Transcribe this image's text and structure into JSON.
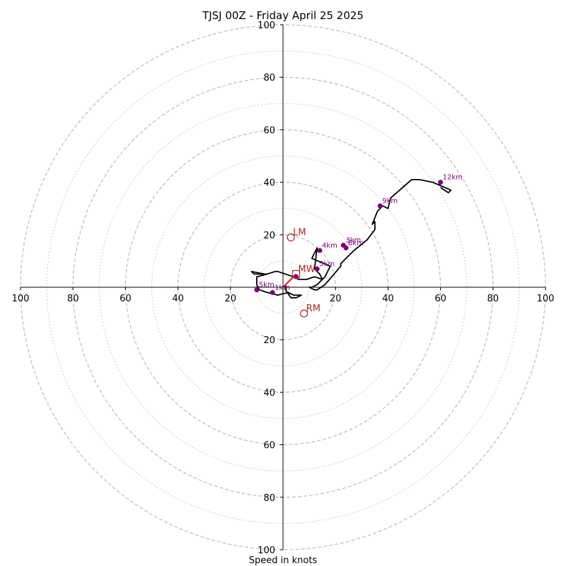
{
  "chart_data": {
    "type": "line",
    "title": "TJSJ 00Z - Friday April 25 2025",
    "xlabel": "Speed in knots",
    "xlim": [
      -100,
      100
    ],
    "ylim": [
      -100,
      100
    ],
    "ticks": [
      {
        "value": -100,
        "label": "100"
      },
      {
        "value": -80,
        "label": "80"
      },
      {
        "value": -60,
        "label": "60"
      },
      {
        "value": -40,
        "label": "40"
      },
      {
        "value": -20,
        "label": "20"
      },
      {
        "value": 20,
        "label": "20"
      },
      {
        "value": 40,
        "label": "40"
      },
      {
        "value": 60,
        "label": "60"
      },
      {
        "value": 80,
        "label": "80"
      },
      {
        "value": 100,
        "label": "100"
      }
    ],
    "ring_dashed": [
      20,
      40,
      60,
      80,
      100
    ],
    "ring_dotted": [
      10,
      30,
      50,
      70,
      90
    ],
    "trace_u": [
      1,
      1,
      3,
      5,
      7,
      4,
      2,
      -2,
      -6,
      -9,
      -10,
      -10,
      -6,
      -7,
      -12,
      -11,
      -6,
      -3,
      -2,
      4,
      6,
      9,
      12,
      15,
      14,
      12,
      13,
      11,
      18,
      17,
      16,
      13,
      11,
      10,
      12,
      13,
      16,
      22,
      22,
      27,
      32,
      35,
      35,
      34,
      36,
      38,
      40,
      41,
      49,
      52,
      57,
      64,
      63,
      60
    ],
    "trace_v": [
      1,
      -1,
      -4,
      -4,
      -3,
      -3,
      -2,
      -3,
      -2,
      -1,
      1,
      4,
      5,
      5,
      6,
      5,
      5,
      6,
      6,
      4,
      3,
      3,
      4,
      3,
      5,
      7,
      15,
      11,
      8,
      6,
      4,
      1,
      0,
      0,
      -1,
      -1,
      1,
      8,
      9,
      14,
      18,
      22,
      25,
      24,
      29,
      31,
      30,
      34,
      41,
      41,
      40,
      37,
      36,
      38
    ],
    "height_points": [
      {
        "label": "1km",
        "u": -4,
        "v": -2
      },
      {
        "label": "5km",
        "u": -10,
        "v": -1
      },
      {
        "label": "5km",
        "u": 13,
        "v": 7
      },
      {
        "label": "3km",
        "u": 23,
        "v": 16
      },
      {
        "label": "6km",
        "u": 24,
        "v": 15
      },
      {
        "label": "4km",
        "u": 14,
        "v": 14
      },
      {
        "label": "9km",
        "u": 37,
        "v": 31
      },
      {
        "label": "12km",
        "u": 60,
        "v": 40
      },
      {
        "label": "",
        "u": 5,
        "v": 4
      }
    ],
    "motion_markers": [
      {
        "label": "LM",
        "u": 3,
        "v": 19,
        "shape": "circle"
      },
      {
        "label": "RM",
        "u": 8,
        "v": -10,
        "shape": "circle"
      },
      {
        "label": "MW",
        "u": 5,
        "v": 5,
        "shape": "square"
      }
    ],
    "colors": {
      "trace": "#000000",
      "shear_vector": "#d62728",
      "height_points": "#800080",
      "motion_markers": "#b22222",
      "grid": "#bbbbbb",
      "axes": "#000000"
    }
  }
}
